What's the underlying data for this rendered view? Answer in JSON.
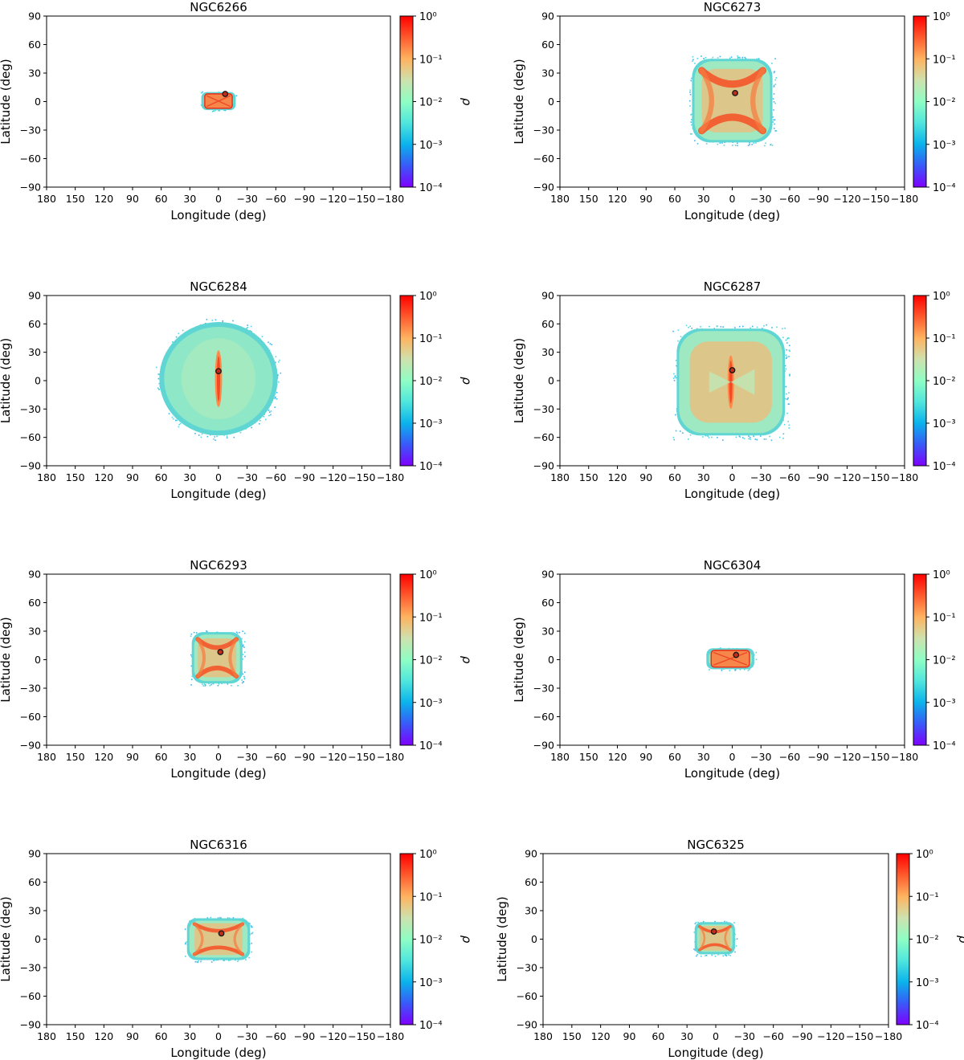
{
  "colormap": [
    "#7f00ff",
    "#3959f8",
    "#0ab3eb",
    "#50e6dd",
    "#8ffec4",
    "#cee2ae",
    "#ffb360",
    "#ff5a2e",
    "#ff0000"
  ],
  "chart_data": [
    {
      "type": "heatmap",
      "title": "NGC6266",
      "xlabel": "Longitude (deg)",
      "ylabel": "Latitude (deg)",
      "xlim": [
        180,
        -180
      ],
      "ylim": [
        -90,
        90
      ],
      "xticks": [
        180,
        150,
        120,
        90,
        60,
        30,
        0,
        -30,
        -60,
        -90,
        -120,
        -150,
        -180
      ],
      "xtick_labels": [
        "180",
        "150",
        "120",
        "90",
        "60",
        "30",
        "0",
        "−30",
        "−60",
        "−90",
        "−120",
        "−150",
        "−180"
      ],
      "yticks": [
        90,
        60,
        30,
        0,
        -30,
        -60,
        -90
      ],
      "ytick_labels": [
        "90",
        "60",
        "30",
        "0",
        "−30",
        "−60",
        "−90"
      ],
      "colorbar_label": "ρ",
      "colorbar_scale": "log",
      "colorbar_range": [
        0.0001,
        1
      ],
      "colorbar_tick_labels": [
        "10⁰",
        "10⁻¹",
        "10⁻²",
        "10⁻³",
        "10⁻⁴"
      ],
      "distribution": {
        "lon_extent": [
          -18,
          18
        ],
        "lat_extent": [
          -9,
          10
        ],
        "shape": "rectangle",
        "peak": "edges and diagonals",
        "halo_density": 0.02
      },
      "marker": {
        "lon": -7,
        "lat": 8
      }
    },
    {
      "type": "heatmap",
      "title": "NGC6273",
      "xlabel": "Longitude (deg)",
      "ylabel": "Latitude (deg)",
      "xlim": [
        180,
        -180
      ],
      "ylim": [
        -90,
        90
      ],
      "xticks": [
        180,
        150,
        120,
        90,
        60,
        30,
        0,
        -30,
        -60,
        -90,
        -120,
        -150,
        -180
      ],
      "xtick_labels": [
        "180",
        "150",
        "120",
        "90",
        "60",
        "30",
        "0",
        "−30",
        "−60",
        "−90",
        "−120",
        "−150",
        "−180"
      ],
      "yticks": [
        90,
        60,
        30,
        0,
        -30,
        -60,
        -90
      ],
      "ytick_labels": [
        "90",
        "60",
        "30",
        "0",
        "−30",
        "−60",
        "−90"
      ],
      "colorbar_label": "ρ",
      "colorbar_scale": "log",
      "colorbar_range": [
        0.0001,
        1
      ],
      "colorbar_tick_labels": [
        "10⁰",
        "10⁻¹",
        "10⁻²",
        "10⁻³",
        "10⁻⁴"
      ],
      "distribution": {
        "lon_extent": [
          -42,
          42
        ],
        "lat_extent": [
          -43,
          45
        ],
        "shape": "rounded square",
        "peak": "x-shaped arcs",
        "halo_density": 0.015
      },
      "marker": {
        "lon": -3,
        "lat": 9
      }
    },
    {
      "type": "heatmap",
      "title": "NGC6284",
      "xlabel": "Longitude (deg)",
      "ylabel": "Latitude (deg)",
      "xlim": [
        180,
        -180
      ],
      "ylim": [
        -90,
        90
      ],
      "xticks": [
        180,
        150,
        120,
        90,
        60,
        30,
        0,
        -30,
        -60,
        -90,
        -120,
        -150,
        -180
      ],
      "xtick_labels": [
        "180",
        "150",
        "120",
        "90",
        "60",
        "30",
        "0",
        "−30",
        "−60",
        "−90",
        "−120",
        "−150",
        "−180"
      ],
      "yticks": [
        90,
        60,
        30,
        0,
        -30,
        -60,
        -90
      ],
      "ytick_labels": [
        "90",
        "60",
        "30",
        "0",
        "−30",
        "−60",
        "−90"
      ],
      "colorbar_label": "ρ",
      "colorbar_scale": "log",
      "colorbar_range": [
        0.0001,
        1
      ],
      "colorbar_tick_labels": [
        "10⁰",
        "10⁻¹",
        "10⁻²",
        "10⁻³",
        "10⁻⁴"
      ],
      "distribution": {
        "lon_extent": [
          -62,
          62
        ],
        "lat_extent": [
          -58,
          62
        ],
        "shape": "ellipse",
        "peak": "vertical streak",
        "halo_density": 0.008
      },
      "marker": {
        "lon": 0,
        "lat": 10
      }
    },
    {
      "type": "heatmap",
      "title": "NGC6287",
      "xlabel": "Longitude (deg)",
      "ylabel": "Latitude (deg)",
      "xlim": [
        180,
        -180
      ],
      "ylim": [
        -90,
        90
      ],
      "xticks": [
        180,
        150,
        120,
        90,
        60,
        30,
        0,
        -30,
        -60,
        -90,
        -120,
        -150,
        -180
      ],
      "xtick_labels": [
        "180",
        "150",
        "120",
        "90",
        "60",
        "30",
        "0",
        "−30",
        "−60",
        "−90",
        "−120",
        "−150",
        "−180"
      ],
      "yticks": [
        90,
        60,
        30,
        0,
        -30,
        -60,
        -90
      ],
      "ytick_labels": [
        "90",
        "60",
        "30",
        "0",
        "−30",
        "−60",
        "−90"
      ],
      "colorbar_label": "ρ",
      "colorbar_scale": "log",
      "colorbar_range": [
        0.0001,
        1
      ],
      "colorbar_tick_labels": [
        "10⁰",
        "10⁻¹",
        "10⁻²",
        "10⁻³",
        "10⁻⁴"
      ],
      "distribution": {
        "lon_extent": [
          -55,
          58
        ],
        "lat_extent": [
          -58,
          55
        ],
        "shape": "rounded square",
        "peak": "vertical streak",
        "halo_density": 0.01
      },
      "marker": {
        "lon": 0,
        "lat": 11
      }
    },
    {
      "type": "heatmap",
      "title": "NGC6293",
      "xlabel": "Longitude (deg)",
      "ylabel": "Latitude (deg)",
      "xlim": [
        180,
        -180
      ],
      "ylim": [
        -90,
        90
      ],
      "xticks": [
        180,
        150,
        120,
        90,
        60,
        30,
        0,
        -30,
        -60,
        -90,
        -120,
        -150,
        -180
      ],
      "xtick_labels": [
        "180",
        "150",
        "120",
        "90",
        "60",
        "30",
        "0",
        "−30",
        "−60",
        "−90",
        "−120",
        "−150",
        "−180"
      ],
      "yticks": [
        90,
        60,
        30,
        0,
        -30,
        -60,
        -90
      ],
      "ytick_labels": [
        "90",
        "60",
        "30",
        "0",
        "−30",
        "−60",
        "−90"
      ],
      "colorbar_label": "ρ",
      "colorbar_scale": "log",
      "colorbar_range": [
        0.0001,
        1
      ],
      "colorbar_tick_labels": [
        "10⁰",
        "10⁻¹",
        "10⁻²",
        "10⁻³",
        "10⁻⁴"
      ],
      "distribution": {
        "lon_extent": [
          -25,
          28
        ],
        "lat_extent": [
          -25,
          29
        ],
        "shape": "rounded square",
        "peak": "x-shaped arcs",
        "halo_density": 0.02
      },
      "marker": {
        "lon": -2,
        "lat": 8
      }
    },
    {
      "type": "heatmap",
      "title": "NGC6304",
      "xlabel": "Longitude (deg)",
      "ylabel": "Latitude (deg)",
      "xlim": [
        180,
        -180
      ],
      "ylim": [
        -90,
        90
      ],
      "xticks": [
        180,
        150,
        120,
        90,
        60,
        30,
        0,
        -30,
        -60,
        -90,
        -120,
        -150,
        -180
      ],
      "xtick_labels": [
        "180",
        "150",
        "120",
        "90",
        "60",
        "30",
        "0",
        "−30",
        "−60",
        "−90",
        "−120",
        "−150",
        "−180"
      ],
      "yticks": [
        90,
        60,
        30,
        0,
        -30,
        -60,
        -90
      ],
      "ytick_labels": [
        "90",
        "60",
        "30",
        "0",
        "−30",
        "−60",
        "−90"
      ],
      "colorbar_label": "ρ",
      "colorbar_scale": "log",
      "colorbar_range": [
        0.0001,
        1
      ],
      "colorbar_tick_labels": [
        "10⁰",
        "10⁻¹",
        "10⁻²",
        "10⁻³",
        "10⁻⁴"
      ],
      "distribution": {
        "lon_extent": [
          -23,
          27
        ],
        "lat_extent": [
          -10,
          12
        ],
        "shape": "rectangle",
        "peak": "edges and diagonals",
        "halo_density": 0.02
      },
      "marker": {
        "lon": -4,
        "lat": 5
      }
    },
    {
      "type": "heatmap",
      "title": "NGC6316",
      "xlabel": "Longitude (deg)",
      "ylabel": "Latitude (deg)",
      "xlim": [
        180,
        -180
      ],
      "ylim": [
        -90,
        90
      ],
      "xticks": [
        180,
        150,
        120,
        90,
        60,
        30,
        0,
        -30,
        -60,
        -90,
        -120,
        -150,
        -180
      ],
      "xtick_labels": [
        "180",
        "150",
        "120",
        "90",
        "60",
        "30",
        "0",
        "−30",
        "−60",
        "−90",
        "−120",
        "−150",
        "−180"
      ],
      "yticks": [
        90,
        60,
        30,
        0,
        -30,
        -60,
        -90
      ],
      "ytick_labels": [
        "90",
        "60",
        "30",
        "0",
        "−30",
        "−60",
        "−90"
      ],
      "colorbar_label": "ρ",
      "colorbar_scale": "log",
      "colorbar_range": [
        0.0001,
        1
      ],
      "colorbar_tick_labels": [
        "10⁰",
        "10⁻¹",
        "10⁻²",
        "10⁻³",
        "10⁻⁴"
      ],
      "distribution": {
        "lon_extent": [
          -33,
          33
        ],
        "lat_extent": [
          -22,
          22
        ],
        "shape": "rounded square",
        "peak": "x-shaped arcs",
        "halo_density": 0.02
      },
      "marker": {
        "lon": -3,
        "lat": 6
      }
    },
    {
      "type": "heatmap",
      "title": "NGC6325",
      "xlabel": "Longitude (deg)",
      "ylabel": "Latitude (deg)",
      "xlim": [
        180,
        -180
      ],
      "ylim": [
        -90,
        90
      ],
      "xticks": [
        180,
        150,
        120,
        90,
        60,
        30,
        0,
        -30,
        -60,
        -90,
        -120,
        -150,
        -180
      ],
      "xtick_labels": [
        "180",
        "150",
        "120",
        "90",
        "60",
        "30",
        "0",
        "−30",
        "−60",
        "−90",
        "−120",
        "−150",
        "−180"
      ],
      "yticks": [
        90,
        60,
        30,
        0,
        -30,
        -60,
        -90
      ],
      "ytick_labels": [
        "90",
        "60",
        "30",
        "0",
        "−30",
        "−60",
        "−90"
      ],
      "colorbar_label": "ρ",
      "colorbar_scale": "log",
      "colorbar_range": [
        0.0001,
        1
      ],
      "colorbar_tick_labels": [
        "10⁰",
        "10⁻¹",
        "10⁻²",
        "10⁻³",
        "10⁻⁴"
      ],
      "distribution": {
        "lon_extent": [
          -20,
          22
        ],
        "lat_extent": [
          -16,
          18
        ],
        "shape": "rounded square",
        "peak": "x-shaped arcs",
        "halo_density": 0.02
      },
      "marker": {
        "lon": 2,
        "lat": 8
      }
    }
  ]
}
